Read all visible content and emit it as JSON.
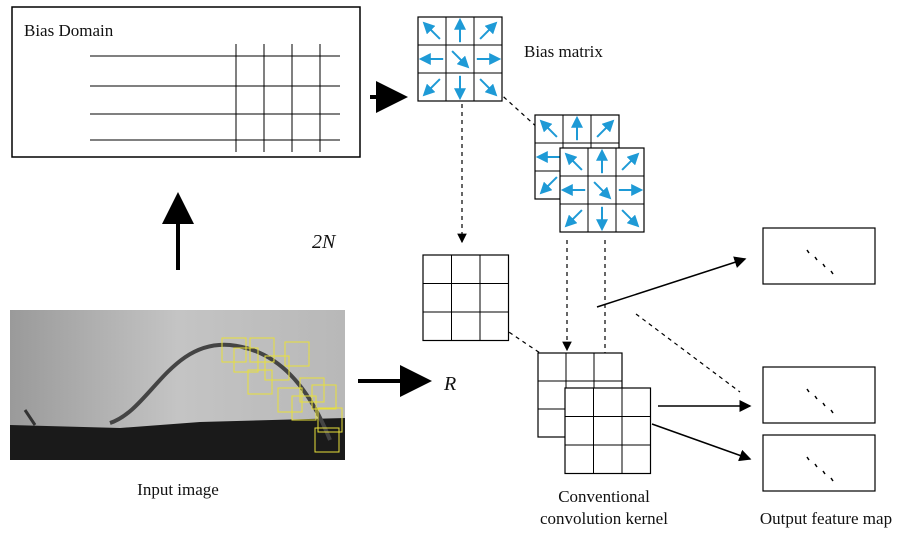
{
  "bias_domain": {
    "title": "Bias Domain"
  },
  "bias_matrix": {
    "label": "Bias matrix"
  },
  "offset_label": "2N",
  "sampling_label": "R",
  "input_image": {
    "label": "Input image"
  },
  "kernel": {
    "label_lines": [
      "Conventional",
      "convolution kernel"
    ]
  },
  "output": {
    "label": "Output feature map"
  }
}
